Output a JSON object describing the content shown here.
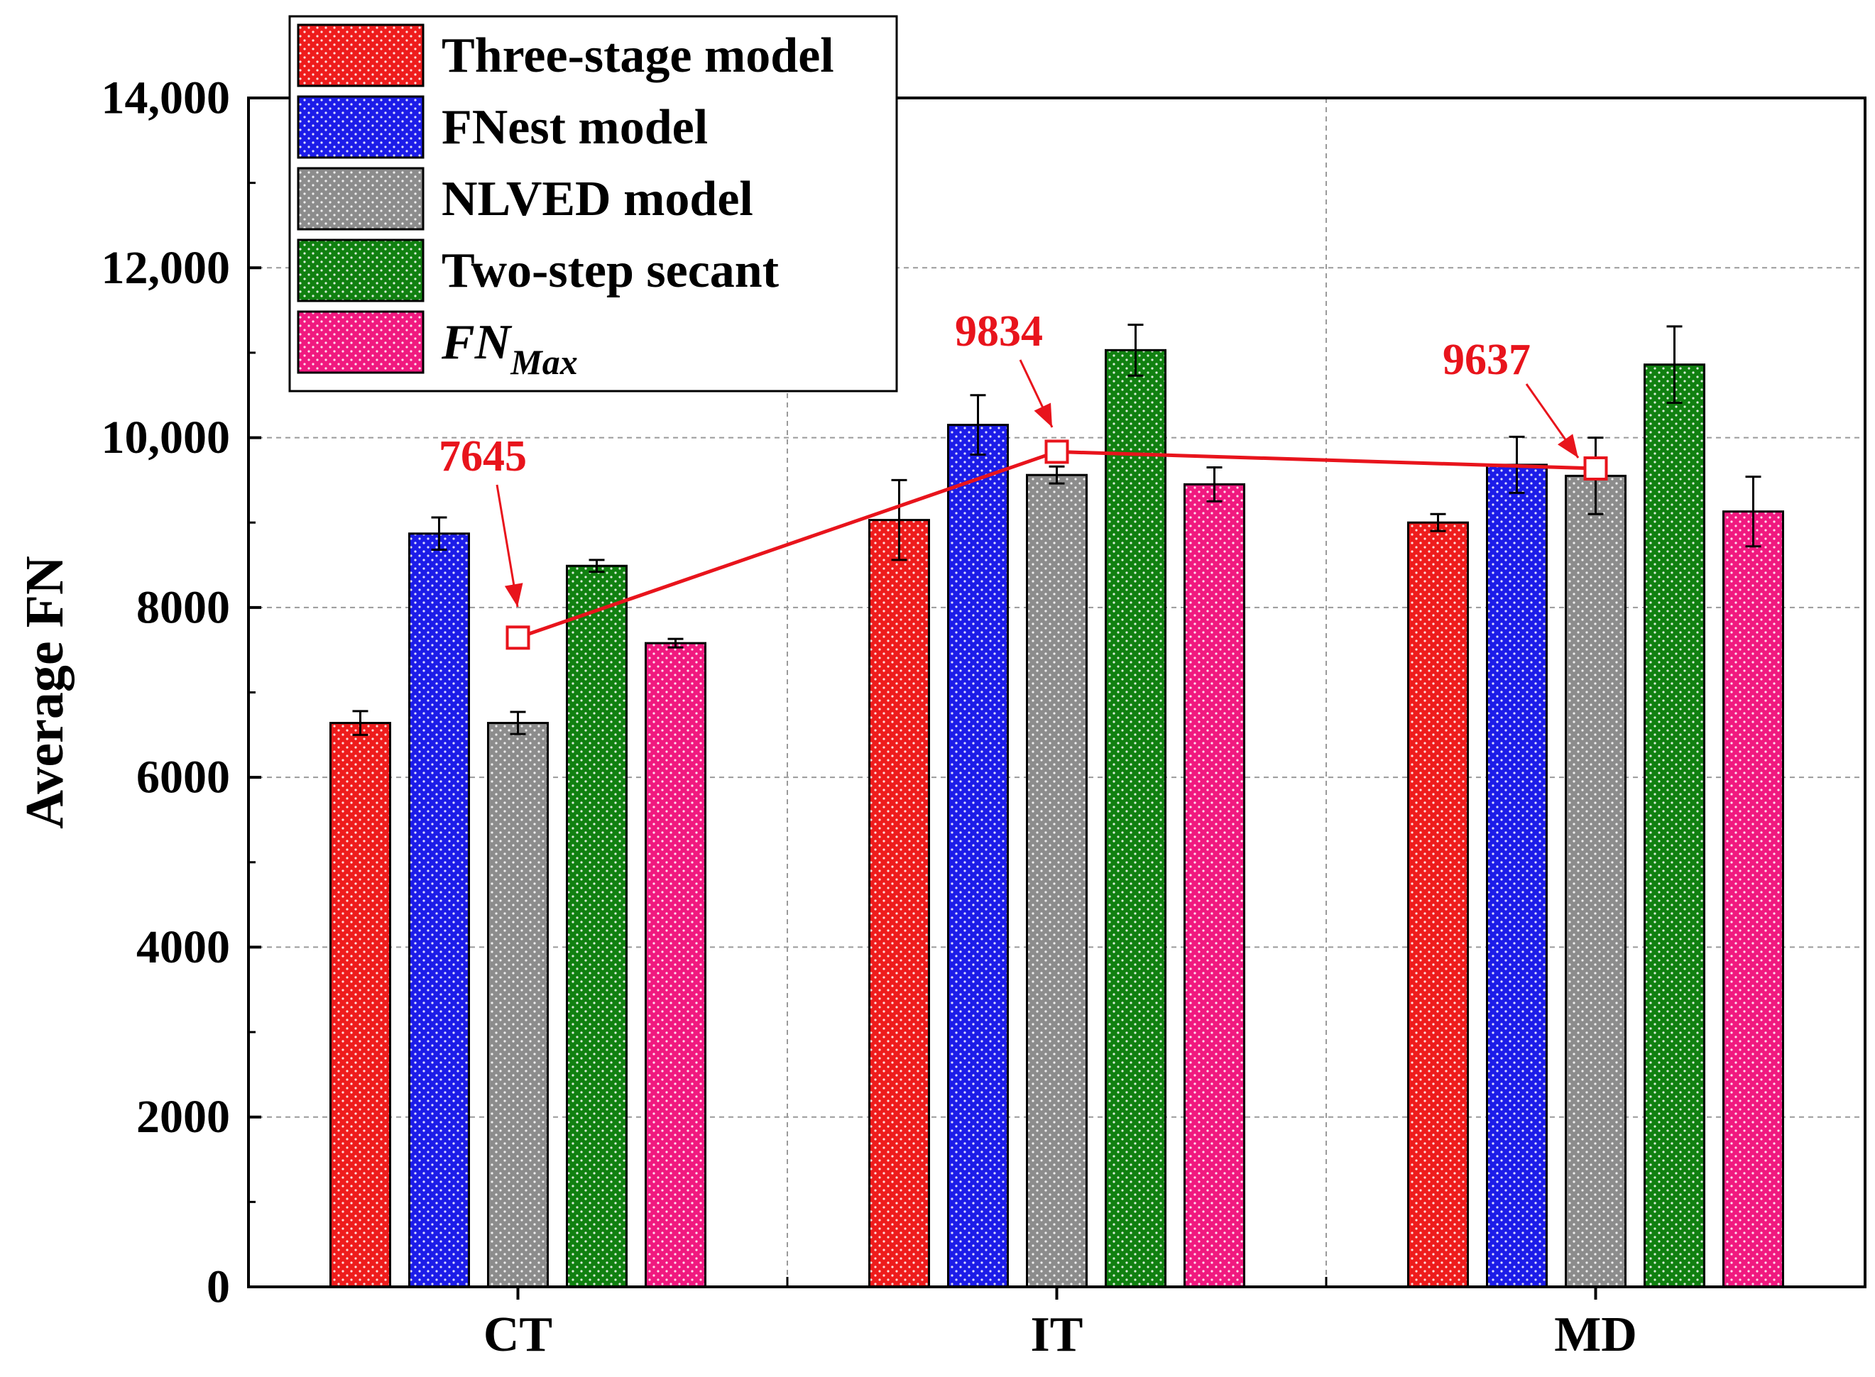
{
  "chart_data": {
    "type": "bar",
    "title": "",
    "xlabel": "",
    "ylabel": "Average FN",
    "ylim": [
      0,
      14000
    ],
    "yticks": [
      {
        "value": 0,
        "label": "0"
      },
      {
        "value": 2000,
        "label": "2000"
      },
      {
        "value": 4000,
        "label": "4000"
      },
      {
        "value": 6000,
        "label": "6000"
      },
      {
        "value": 8000,
        "label": "8000"
      },
      {
        "value": 10000,
        "label": "10,000"
      },
      {
        "value": 12000,
        "label": "12,000"
      },
      {
        "value": 14000,
        "label": "14,000"
      }
    ],
    "categories": [
      "CT",
      "IT",
      "MD"
    ],
    "grid": true,
    "legend_position": "top-left",
    "series": [
      {
        "name": "Three-stage model",
        "color": "#ee1c1c",
        "values": [
          6640,
          9030,
          9000
        ],
        "errors": [
          140,
          470,
          100
        ]
      },
      {
        "name": "FNest model",
        "color": "#1c1ce8",
        "values": [
          8870,
          10150,
          9680
        ],
        "errors": [
          190,
          350,
          330
        ]
      },
      {
        "name": "NLVED model",
        "color": "#8c8c8c",
        "values": [
          6640,
          9560,
          9550
        ],
        "errors": [
          130,
          100,
          450
        ]
      },
      {
        "name": "Two-step secant",
        "color": "#108010",
        "values": [
          8490,
          11030,
          10860
        ],
        "errors": [
          70,
          300,
          450
        ]
      },
      {
        "name": "FN",
        "name_subscript": "Max",
        "color": "#f0197f",
        "values": [
          7580,
          9450,
          9130
        ],
        "errors": [
          50,
          200,
          410
        ]
      }
    ],
    "overlay_line": {
      "color": "#e8141c",
      "points": [
        {
          "category": "CT",
          "value": 7645,
          "label": "7645"
        },
        {
          "category": "IT",
          "value": 9834,
          "label": "9834"
        },
        {
          "category": "MD",
          "value": 9637,
          "label": "9637"
        }
      ]
    }
  }
}
